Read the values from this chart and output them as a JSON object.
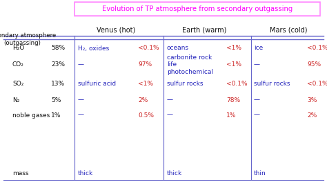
{
  "title": "Evolution of TP atmosphere from secondary outgassing",
  "title_color": "#ff00ff",
  "box_edge_color": "#ff88ff",
  "blue_color": "#2222bb",
  "red_color": "#cc2222",
  "black_color": "#111111",
  "line_color": "#6666cc",
  "figsize": [
    4.74,
    2.77
  ],
  "dpi": 100,
  "rows": [
    {
      "sp": "H₂O",
      "pct": "58%",
      "vd": "H₂, oxides",
      "vp": "<0.1%",
      "ed": "oceans",
      "ep": "<1%",
      "md": "ice",
      "mp": "<0.1%"
    },
    {
      "sp": "CO₂",
      "pct": "23%",
      "vd": "—",
      "vp": "97%",
      "ed": "carbonite rock\nlife\nphotochemical",
      "ep": "<1%",
      "md": "—",
      "mp": "95%"
    },
    {
      "sp": "SO₂",
      "pct": "13%",
      "vd": "sulfuric acid",
      "vp": "<1%",
      "ed": "sulfur rocks",
      "ep": "<0.1%",
      "md": "sulfur rocks",
      "mp": "<0.1%"
    },
    {
      "sp": "N₂",
      "pct": "5%",
      "vd": "—",
      "vp": "2%",
      "ed": "—",
      "ep": "78%",
      "md": "—",
      "mp": "3%"
    },
    {
      "sp": "noble gases",
      "pct": "1%",
      "vd": "—",
      "vp": "0.5%",
      "ed": "—",
      "ep": "1%",
      "md": "—",
      "mp": "2%"
    },
    {
      "sp": "mass",
      "pct": "",
      "vd": "thick",
      "vp": "",
      "ed": "thick",
      "ep": "",
      "md": "thin",
      "mp": ""
    }
  ]
}
